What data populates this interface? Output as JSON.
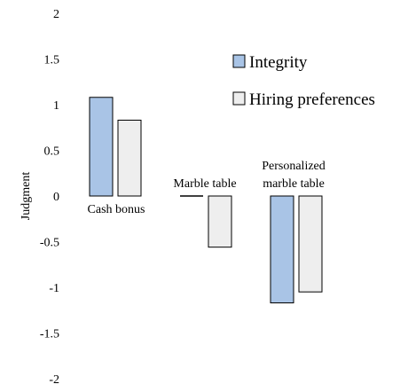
{
  "chart_data": {
    "type": "bar",
    "ylabel": "Judgment",
    "ylim": [
      -2,
      2
    ],
    "yticks": [
      "2",
      "1.5",
      "1",
      "0.5",
      "0",
      "-0.5",
      "-1",
      "-1.5",
      "-2"
    ],
    "categories": [
      "Cash bonus",
      "Marble table",
      "Personalized marble table"
    ],
    "category_label_lines": [
      [
        "Cash bonus"
      ],
      [
        "Marble table"
      ],
      [
        "Personalized",
        "marble table"
      ]
    ],
    "series": [
      {
        "name": "Integrity",
        "values": [
          1.08,
          0.0,
          -1.17
        ],
        "color": "#a9c4e6"
      },
      {
        "name": "Hiring preferences",
        "values": [
          0.83,
          -0.56,
          -1.05
        ],
        "color": "#eeeeee"
      }
    ],
    "legend": "right",
    "grid": false
  }
}
